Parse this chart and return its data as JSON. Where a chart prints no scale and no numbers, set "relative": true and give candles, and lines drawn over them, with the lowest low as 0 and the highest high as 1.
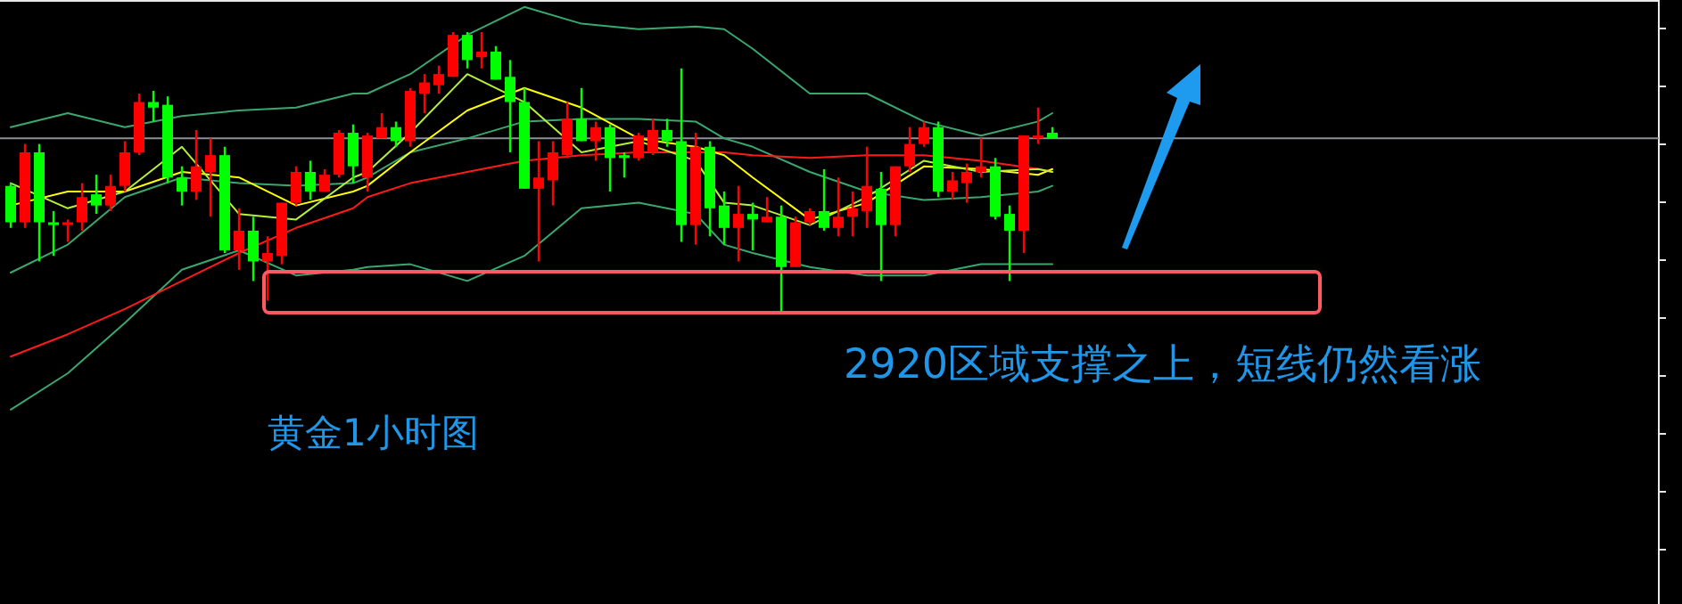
{
  "chart_data": {
    "type": "candlestick",
    "relative": true,
    "categories": [
      null,
      null,
      null,
      null,
      null,
      null,
      null,
      null,
      null,
      null,
      null,
      null,
      null,
      null,
      null,
      null,
      null,
      null,
      null,
      null,
      null,
      null,
      null,
      null,
      null,
      null,
      null,
      null,
      null,
      null,
      null,
      null,
      null,
      null,
      null,
      null,
      null,
      null,
      null,
      null,
      null,
      null,
      null,
      null,
      null,
      null,
      null,
      null,
      null,
      null,
      null,
      null,
      null,
      null,
      null,
      null,
      null,
      null,
      null,
      null,
      null,
      null,
      null,
      null,
      null,
      null,
      null,
      null,
      null,
      null,
      null,
      null,
      null,
      null
    ],
    "ohlc": [
      [
        0.45,
        0.46,
        0.3,
        0.32
      ],
      [
        0.32,
        0.6,
        0.3,
        0.57
      ],
      [
        0.57,
        0.6,
        0.18,
        0.32
      ],
      [
        0.32,
        0.36,
        0.2,
        0.31
      ],
      [
        0.31,
        0.33,
        0.25,
        0.32
      ],
      [
        0.32,
        0.46,
        0.29,
        0.41
      ],
      [
        0.42,
        0.49,
        0.35,
        0.38
      ],
      [
        0.38,
        0.49,
        0.36,
        0.45
      ],
      [
        0.45,
        0.61,
        0.43,
        0.57
      ],
      [
        0.57,
        0.78,
        0.56,
        0.75
      ],
      [
        0.75,
        0.79,
        0.68,
        0.73
      ],
      [
        0.74,
        0.77,
        0.46,
        0.48
      ],
      [
        0.48,
        0.52,
        0.38,
        0.43
      ],
      [
        0.43,
        0.65,
        0.4,
        0.52
      ],
      [
        0.5,
        0.62,
        0.34,
        0.56
      ],
      [
        0.56,
        0.59,
        0.21,
        0.22
      ],
      [
        0.22,
        0.37,
        0.15,
        0.29
      ],
      [
        0.29,
        0.34,
        0.11,
        0.18
      ],
      [
        0.18,
        0.27,
        0.04,
        0.21
      ],
      [
        0.2,
        0.39,
        0.17,
        0.39
      ],
      [
        0.39,
        0.52,
        0.38,
        0.5
      ],
      [
        0.5,
        0.54,
        0.4,
        0.43
      ],
      [
        0.43,
        0.51,
        0.43,
        0.49
      ],
      [
        0.49,
        0.65,
        0.48,
        0.64
      ],
      [
        0.64,
        0.67,
        0.46,
        0.52
      ],
      [
        0.48,
        0.64,
        0.43,
        0.63
      ],
      [
        0.62,
        0.71,
        0.62,
        0.66
      ],
      [
        0.66,
        0.68,
        0.59,
        0.61
      ],
      [
        0.61,
        0.8,
        0.59,
        0.79
      ],
      [
        0.78,
        0.85,
        0.71,
        0.82
      ],
      [
        0.81,
        0.88,
        0.78,
        0.85
      ],
      [
        0.84,
        1.0,
        0.84,
        0.99
      ],
      [
        0.99,
        1.0,
        0.87,
        0.9
      ],
      [
        0.91,
        1.0,
        0.87,
        0.93
      ],
      [
        0.93,
        0.95,
        0.83,
        0.83
      ],
      [
        0.84,
        0.9,
        0.57,
        0.75
      ],
      [
        0.75,
        0.8,
        0.44,
        0.44
      ],
      [
        0.44,
        0.61,
        0.18,
        0.48
      ],
      [
        0.47,
        0.61,
        0.38,
        0.57
      ],
      [
        0.56,
        0.75,
        0.55,
        0.69
      ],
      [
        0.69,
        0.8,
        0.61,
        0.61
      ],
      [
        0.61,
        0.68,
        0.54,
        0.66
      ],
      [
        0.66,
        0.67,
        0.43,
        0.55
      ],
      [
        0.56,
        0.57,
        0.48,
        0.55
      ],
      [
        0.55,
        0.64,
        0.54,
        0.63
      ],
      [
        0.57,
        0.69,
        0.56,
        0.65
      ],
      [
        0.65,
        0.69,
        0.59,
        0.61
      ],
      [
        0.61,
        0.87,
        0.25,
        0.31
      ],
      [
        0.31,
        0.64,
        0.24,
        0.59
      ],
      [
        0.59,
        0.61,
        0.27,
        0.37
      ],
      [
        0.38,
        0.43,
        0.24,
        0.3
      ],
      [
        0.3,
        0.45,
        0.18,
        0.35
      ],
      [
        0.35,
        0.39,
        0.22,
        0.33
      ],
      [
        0.32,
        0.41,
        0.32,
        0.34
      ],
      [
        0.34,
        0.38,
        0,
        0.16
      ],
      [
        0.16,
        0.34,
        0.16,
        0.32
      ],
      [
        0.32,
        0.37,
        0.31,
        0.36
      ],
      [
        0.36,
        0.51,
        0.29,
        0.3
      ],
      [
        0.3,
        0.48,
        0.27,
        0.34
      ],
      [
        0.34,
        0.43,
        0.27,
        0.37
      ],
      [
        0.36,
        0.59,
        0.3,
        0.45
      ],
      [
        0.44,
        0.5,
        0.11,
        0.31
      ],
      [
        0.31,
        0.52,
        0.27,
        0.52
      ],
      [
        0.52,
        0.66,
        0.5,
        0.6
      ],
      [
        0.6,
        0.68,
        0.59,
        0.66
      ],
      [
        0.66,
        0.68,
        0.41,
        0.43
      ],
      [
        0.43,
        0.5,
        0.4,
        0.47
      ],
      [
        0.46,
        0.53,
        0.39,
        0.5
      ],
      [
        0.5,
        0.62,
        0.48,
        0.52
      ],
      [
        0.52,
        0.55,
        0.33,
        0.34
      ],
      [
        0.35,
        0.38,
        0.11,
        0.29
      ],
      [
        0.29,
        0.63,
        0.21,
        0.63
      ],
      [
        0.62,
        0.73,
        0.6,
        0.63
      ],
      [
        0.64,
        0.66,
        0.62,
        0.62
      ]
    ],
    "colors": [
      "#00ff00",
      "#ff0000",
      "#00ff00",
      "#00ff00",
      "#ff0000",
      "#ff0000",
      "#00ff00",
      "#ff0000",
      "#ff0000",
      "#ff0000",
      "#00ff00",
      "#00ff00",
      "#00ff00",
      "#ff0000",
      "#ff0000",
      "#00ff00",
      "#ff0000",
      "#00ff00",
      "#ff0000",
      "#ff0000",
      "#ff0000",
      "#00ff00",
      "#ff0000",
      "#ff0000",
      "#00ff00",
      "#ff0000",
      "#ff0000",
      "#00ff00",
      "#ff0000",
      "#ff0000",
      "#ff0000",
      "#ff0000",
      "#00ff00",
      "#ff0000",
      "#00ff00",
      "#00ff00",
      "#00ff00",
      "#ff0000",
      "#ff0000",
      "#ff0000",
      "#00ff00",
      "#ff0000",
      "#00ff00",
      "#00ff00",
      "#ff0000",
      "#ff0000",
      "#00ff00",
      "#00ff00",
      "#ff0000",
      "#00ff00",
      "#00ff00",
      "#ff0000",
      "#00ff00",
      "#ff0000",
      "#00ff00",
      "#ff0000",
      "#ff0000",
      "#00ff00",
      "#ff0000",
      "#ff0000",
      "#ff0000",
      "#00ff00",
      "#ff0000",
      "#ff0000",
      "#ff0000",
      "#00ff00",
      "#ff0000",
      "#ff0000",
      "#ff0000",
      "#00ff00",
      "#00ff00",
      "#ff0000",
      "#ff0000",
      "#00ff00"
    ],
    "series": [
      {
        "type": "line",
        "color": "#3aa86e",
        "values": [
          0.66,
          null,
          null,
          null,
          0.71,
          null,
          null,
          null,
          0.66,
          null,
          null,
          null,
          0.7,
          null,
          null,
          null,
          0.72,
          null,
          null,
          null,
          0.73,
          null,
          null,
          null,
          0.78,
          0.78,
          null,
          null,
          0.85,
          null,
          null,
          null,
          0.99,
          null,
          null,
          null,
          1.09,
          null,
          null,
          null,
          1.03,
          null,
          null,
          null,
          1.01,
          null,
          null,
          null,
          1.02,
          null,
          1.01,
          null,
          0.94,
          null,
          null,
          null,
          0.78,
          null,
          null,
          null,
          0.78,
          null,
          null,
          null,
          0.68,
          null,
          null,
          null,
          0.63,
          null,
          null,
          null,
          0.68,
          0.71
        ]
      },
      {
        "type": "line",
        "color": "#3aa86e",
        "values": [
          0.14,
          null,
          null,
          null,
          0.24,
          null,
          null,
          null,
          0.41,
          null,
          null,
          null,
          0.48,
          null,
          null,
          null,
          0.46,
          null,
          null,
          null,
          0.45,
          null,
          null,
          null,
          0.46,
          0.48,
          null,
          null,
          0.57,
          null,
          null,
          null,
          0.62,
          null,
          null,
          null,
          0.68,
          null,
          null,
          null,
          0.69,
          null,
          null,
          null,
          0.69,
          null,
          null,
          null,
          0.68,
          null,
          0.62,
          null,
          0.59,
          null,
          null,
          null,
          0.5,
          null,
          null,
          null,
          0.43,
          null,
          null,
          null,
          0.4,
          null,
          null,
          null,
          0.41,
          null,
          null,
          null,
          0.43,
          0.45
        ]
      },
      {
        "type": "line",
        "color": "#3aa86e",
        "values": [
          -0.35,
          null,
          null,
          null,
          -0.22,
          null,
          null,
          null,
          -0.04,
          null,
          null,
          null,
          0.15,
          null,
          null,
          null,
          0.22,
          null,
          null,
          null,
          0.13,
          null,
          null,
          null,
          0.15,
          0.16,
          null,
          null,
          0.17,
          null,
          null,
          null,
          0.11,
          null,
          null,
          null,
          0.2,
          null,
          null,
          null,
          0.37,
          null,
          null,
          null,
          0.39,
          null,
          null,
          null,
          0.35,
          null,
          0.24,
          null,
          0.21,
          null,
          null,
          null,
          0.16,
          null,
          null,
          null,
          0.13,
          null,
          null,
          null,
          0.13,
          null,
          null,
          null,
          0.17,
          null,
          null,
          null,
          0.17,
          0.17
        ]
      },
      {
        "type": "line",
        "color": "#ff1a1a",
        "values": [
          -0.16,
          null,
          null,
          null,
          -0.08,
          null,
          null,
          null,
          0.01,
          null,
          null,
          null,
          0.11,
          null,
          null,
          null,
          0.21,
          null,
          null,
          null,
          0.3,
          null,
          null,
          null,
          0.37,
          0.41,
          null,
          null,
          0.46,
          null,
          null,
          null,
          0.5,
          null,
          null,
          null,
          0.54,
          null,
          null,
          null,
          0.56,
          null,
          null,
          null,
          0.57,
          null,
          null,
          null,
          0.57,
          null,
          0.57,
          null,
          0.56,
          null,
          null,
          null,
          0.55,
          null,
          null,
          null,
          0.56,
          null,
          null,
          null,
          0.56,
          null,
          null,
          null,
          0.54,
          null,
          null,
          null,
          0.51,
          0.5
        ]
      },
      {
        "type": "line",
        "color": "#ffff00",
        "values": [
          0.38,
          null,
          null,
          null,
          0.43,
          null,
          null,
          null,
          0.43,
          null,
          null,
          null,
          0.5,
          null,
          null,
          null,
          0.48,
          null,
          null,
          null,
          0.38,
          null,
          null,
          null,
          0.43,
          0.45,
          null,
          null,
          0.57,
          null,
          null,
          null,
          0.72,
          null,
          null,
          null,
          0.8,
          null,
          null,
          null,
          0.73,
          null,
          null,
          null,
          0.62,
          null,
          null,
          null,
          0.59,
          null,
          0.56,
          null,
          0.48,
          null,
          null,
          null,
          0.33,
          null,
          null,
          null,
          0.39,
          null,
          null,
          null,
          0.52,
          null,
          null,
          null,
          0.51,
          null,
          null,
          null,
          0.49,
          0.51
        ]
      },
      {
        "type": "line",
        "color": "#b4f03c",
        "values": [
          0.46,
          null,
          null,
          null,
          0.37,
          null,
          null,
          null,
          0.43,
          null,
          null,
          null,
          0.59,
          null,
          null,
          null,
          0.35,
          null,
          null,
          null,
          0.33,
          null,
          null,
          null,
          0.48,
          0.5,
          null,
          null,
          0.64,
          null,
          null,
          null,
          0.85,
          null,
          null,
          null,
          0.75,
          null,
          null,
          null,
          0.57,
          null,
          null,
          null,
          0.61,
          null,
          null,
          null,
          0.54,
          null,
          0.39,
          null,
          0.38,
          null,
          null,
          null,
          0.31,
          null,
          null,
          null,
          0.41,
          null,
          null,
          null,
          0.54,
          null,
          null,
          null,
          0.5,
          null,
          null,
          null,
          0.51,
          0.5
        ]
      }
    ],
    "ref_lines": [
      {
        "axis": "y",
        "value": 0.62,
        "color": "#8a8f98"
      }
    ],
    "annotations": [
      "黄金1小时图",
      "2920区域支撑之上，短线仍然看涨"
    ]
  }
}
